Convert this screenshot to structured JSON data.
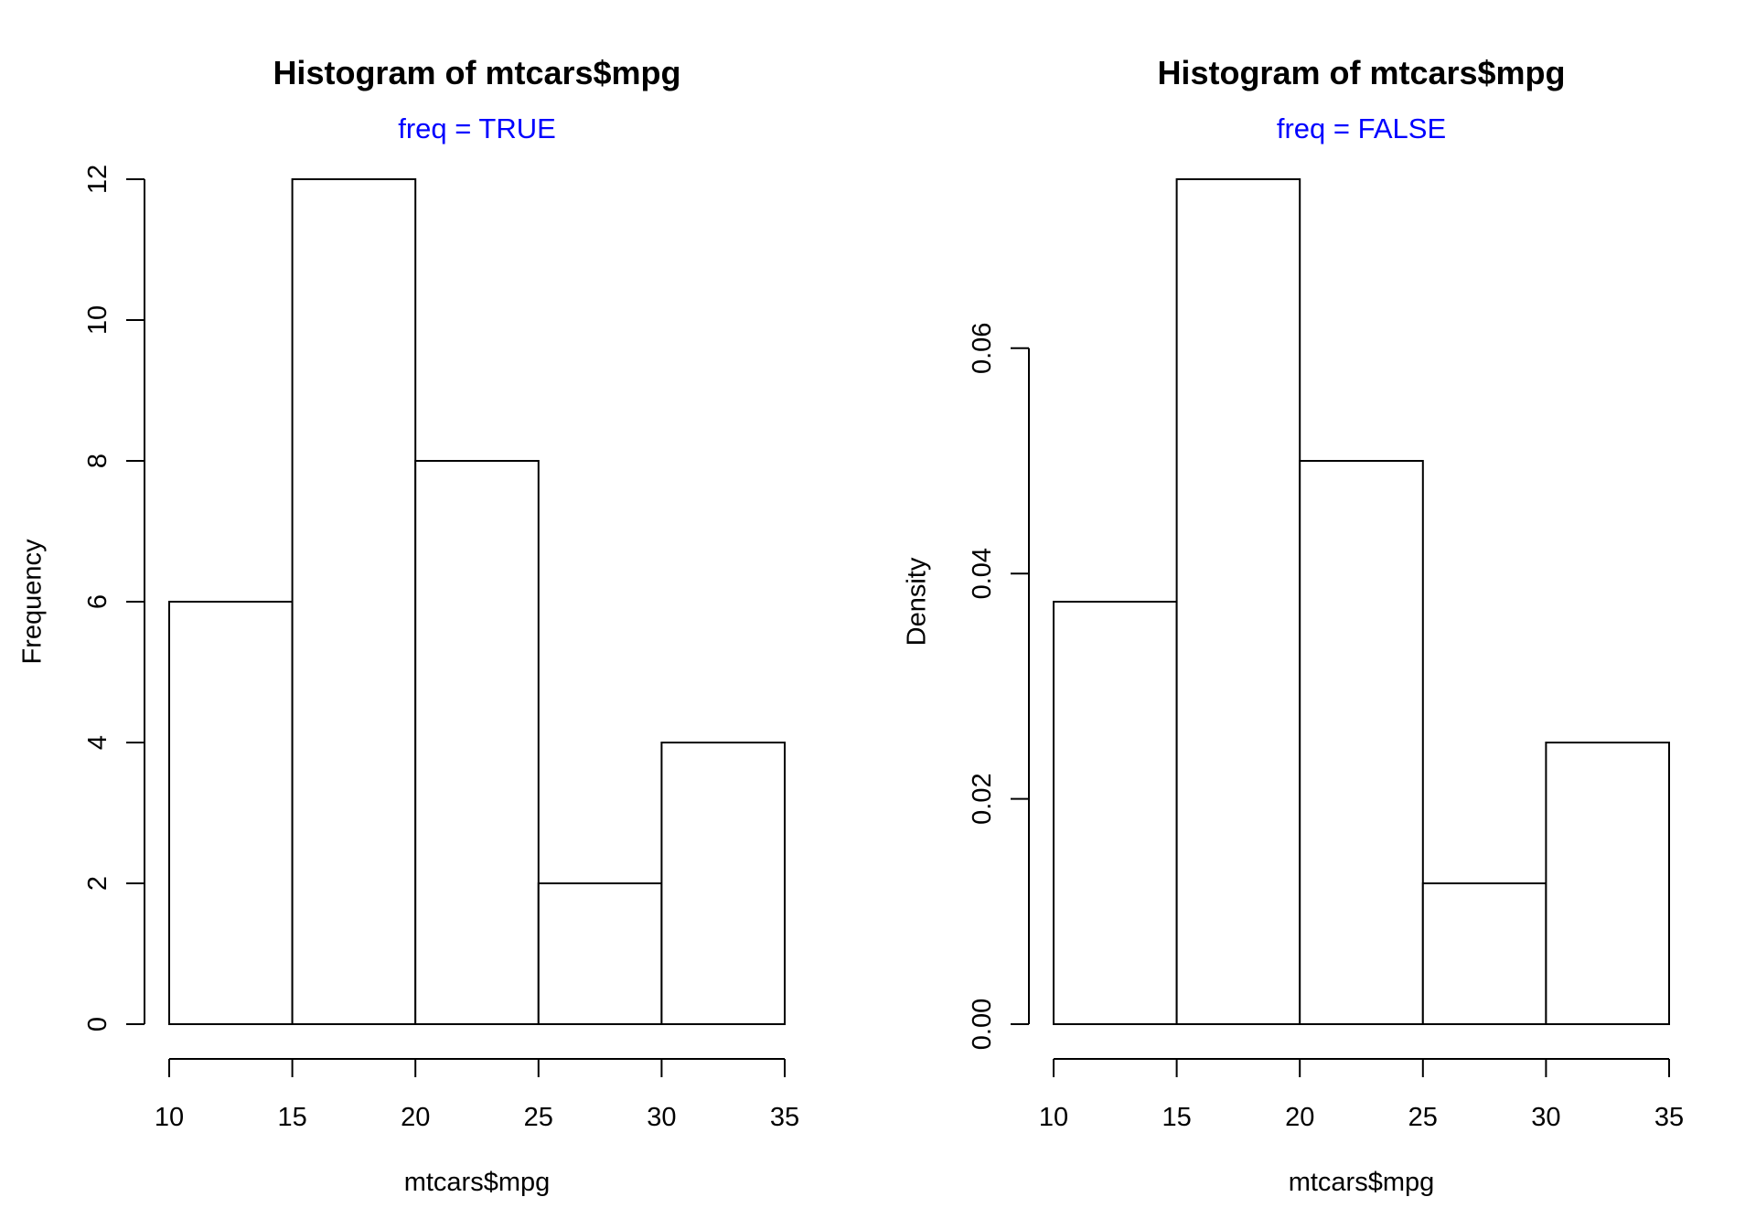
{
  "colors": {
    "subtitle": "#0000ff",
    "bar_fill": "#ffffff",
    "bar_stroke": "#000000"
  },
  "chart_data": [
    {
      "type": "bar",
      "title": "Histogram of mtcars$mpg",
      "subtitle": "freq =  TRUE",
      "xlabel": "mtcars$mpg",
      "ylabel": "Frequency",
      "bins": [
        [
          10,
          15
        ],
        [
          15,
          20
        ],
        [
          20,
          25
        ],
        [
          25,
          30
        ],
        [
          30,
          35
        ]
      ],
      "values": [
        6,
        12,
        8,
        2,
        4
      ],
      "xlim": [
        10,
        35
      ],
      "ylim": [
        0,
        12
      ],
      "xticks": [
        10,
        15,
        20,
        25,
        30,
        35
      ],
      "yticks": [
        0,
        2,
        4,
        6,
        8,
        10,
        12
      ],
      "xtick_labels": [
        "10",
        "15",
        "20",
        "25",
        "30",
        "35"
      ],
      "ytick_labels": [
        "0",
        "2",
        "4",
        "6",
        "8",
        "10",
        "12"
      ]
    },
    {
      "type": "bar",
      "title": "Histogram of mtcars$mpg",
      "subtitle": "freq =  FALSE",
      "xlabel": "mtcars$mpg",
      "ylabel": "Density",
      "bins": [
        [
          10,
          15
        ],
        [
          15,
          20
        ],
        [
          20,
          25
        ],
        [
          25,
          30
        ],
        [
          30,
          35
        ]
      ],
      "values": [
        0.0375,
        0.075,
        0.05,
        0.0125,
        0.025
      ],
      "xlim": [
        10,
        35
      ],
      "ylim": [
        0,
        0.075
      ],
      "xticks": [
        10,
        15,
        20,
        25,
        30,
        35
      ],
      "yticks": [
        0,
        0.02,
        0.04,
        0.06
      ],
      "xtick_labels": [
        "10",
        "15",
        "20",
        "25",
        "30",
        "35"
      ],
      "ytick_labels": [
        "0.00",
        "0.02",
        "0.04",
        "0.06"
      ]
    }
  ]
}
